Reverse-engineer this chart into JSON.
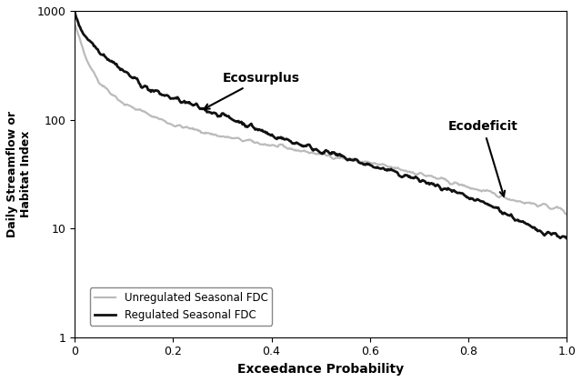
{
  "title": "",
  "xlabel": "Exceedance Probability",
  "ylabel": "Daily Streamflow or\nHabitat Index",
  "xlim": [
    0,
    1
  ],
  "ylim_log": [
    1,
    1000
  ],
  "yticks": [
    1,
    10,
    100,
    1000
  ],
  "xticks": [
    0,
    0.2,
    0.4,
    0.6,
    0.8,
    1.0
  ],
  "unregulated_color": "#bbbbbb",
  "regulated_color": "#111111",
  "unregulated_label": "Unregulated Seasonal FDC",
  "regulated_label": "Regulated Seasonal FDC",
  "ecosurplus_label": "Ecosurplus",
  "ecodeficit_label": "Ecodeficit",
  "background_color": "#ffffff",
  "linewidth_unregulated": 1.6,
  "linewidth_regulated": 2.0,
  "noise_seed": 42
}
